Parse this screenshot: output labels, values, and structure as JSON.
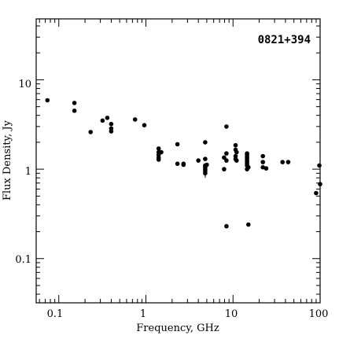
{
  "chart_data": {
    "type": "scatter",
    "title": "0821+394",
    "xlabel": "Frequency, GHz",
    "ylabel": "Flux Density, Jy",
    "x_scale": "log",
    "y_scale": "log",
    "xlim": [
      0.055,
      100
    ],
    "ylim": [
      0.032,
      48
    ],
    "x_tick_labels": [
      "0.1",
      "1",
      "10",
      "100"
    ],
    "y_tick_labels": [
      "0.1",
      "1",
      "10"
    ],
    "grid": false,
    "legend": "none",
    "marker_color": "#000000",
    "points": [
      {
        "x": 0.074,
        "y": 5.9
      },
      {
        "x": 0.151,
        "y": 5.5
      },
      {
        "x": 0.151,
        "y": 4.5
      },
      {
        "x": 0.232,
        "y": 2.6
      },
      {
        "x": 0.318,
        "y": 3.5
      },
      {
        "x": 0.36,
        "y": 3.75
      },
      {
        "x": 0.4,
        "y": 3.2
      },
      {
        "x": 0.4,
        "y": 2.85
      },
      {
        "x": 0.4,
        "y": 2.65
      },
      {
        "x": 0.75,
        "y": 3.6
      },
      {
        "x": 0.96,
        "y": 3.1
      },
      {
        "x": 1.4,
        "y": 1.7
      },
      {
        "x": 1.4,
        "y": 1.55
      },
      {
        "x": 1.4,
        "y": 1.45
      },
      {
        "x": 1.4,
        "y": 1.35
      },
      {
        "x": 1.4,
        "y": 1.28
      },
      {
        "x": 1.5,
        "y": 1.55
      },
      {
        "x": 2.3,
        "y": 1.9
      },
      {
        "x": 2.3,
        "y": 1.15
      },
      {
        "x": 2.7,
        "y": 1.15
      },
      {
        "x": 2.7,
        "y": 1.12
      },
      {
        "x": 4.0,
        "y": 1.25
      },
      {
        "x": 4.8,
        "y": 2.0
      },
      {
        "x": 4.8,
        "y": 1.3
      },
      {
        "x": 4.8,
        "y": 1.1
      },
      {
        "x": 4.8,
        "y": 1.05
      },
      {
        "x": 4.8,
        "y": 1.0
      },
      {
        "x": 4.8,
        "y": 0.95
      },
      {
        "x": 4.8,
        "y": 0.9,
        "yerr": [
          0.8,
          1.0
        ]
      },
      {
        "x": 5.0,
        "y": 1.12
      },
      {
        "x": 7.9,
        "y": 1.35
      },
      {
        "x": 7.9,
        "y": 1.0
      },
      {
        "x": 8.4,
        "y": 3.0
      },
      {
        "x": 8.4,
        "y": 1.5
      },
      {
        "x": 8.4,
        "y": 1.25
      },
      {
        "x": 8.4,
        "y": 0.23
      },
      {
        "x": 10.7,
        "y": 1.85
      },
      {
        "x": 10.7,
        "y": 1.65
      },
      {
        "x": 10.7,
        "y": 1.4
      },
      {
        "x": 10.7,
        "y": 1.3
      },
      {
        "x": 11.0,
        "y": 1.55
      },
      {
        "x": 11.0,
        "y": 1.25
      },
      {
        "x": 14.5,
        "y": 1.5
      },
      {
        "x": 14.5,
        "y": 1.45
      },
      {
        "x": 14.5,
        "y": 1.38
      },
      {
        "x": 14.5,
        "y": 1.32
      },
      {
        "x": 14.5,
        "y": 1.25
      },
      {
        "x": 14.5,
        "y": 1.2
      },
      {
        "x": 14.5,
        "y": 1.15
      },
      {
        "x": 14.5,
        "y": 1.1
      },
      {
        "x": 14.5,
        "y": 1.0
      },
      {
        "x": 15.0,
        "y": 0.24
      },
      {
        "x": 15.0,
        "y": 1.05
      },
      {
        "x": 22.0,
        "y": 1.4
      },
      {
        "x": 22.0,
        "y": 1.2
      },
      {
        "x": 22.0,
        "y": 1.05
      },
      {
        "x": 24.0,
        "y": 1.02
      },
      {
        "x": 37.0,
        "y": 1.2
      },
      {
        "x": 43.0,
        "y": 1.2
      },
      {
        "x": 90.0,
        "y": 0.54
      },
      {
        "x": 98.0,
        "y": 1.1
      },
      {
        "x": 100.0,
        "y": 0.68
      }
    ]
  }
}
